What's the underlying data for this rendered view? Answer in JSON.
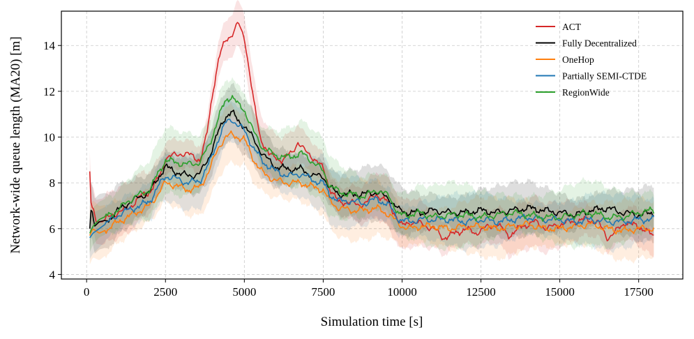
{
  "chart_data": {
    "type": "line",
    "xlabel": "Simulation time [s]",
    "ylabel": "Network-wide queue length (MA20) [m]",
    "xlim": [
      -800,
      18900
    ],
    "ylim": [
      3.8,
      15.5
    ],
    "xticks": [
      0,
      2500,
      5000,
      7500,
      10000,
      12500,
      15000,
      17500
    ],
    "yticks": [
      4,
      6,
      8,
      10,
      12,
      14
    ],
    "grid": true,
    "legend_position": "top-right",
    "series": [
      {
        "name": "ACT",
        "color": "#d62728",
        "points": [
          [
            100,
            8.5
          ],
          [
            150,
            6.8
          ],
          [
            200,
            7.0
          ],
          [
            300,
            6.3
          ],
          [
            500,
            6.3
          ],
          [
            800,
            6.6
          ],
          [
            1200,
            6.8
          ],
          [
            1500,
            7.1
          ],
          [
            1800,
            7.5
          ],
          [
            2000,
            7.6
          ],
          [
            2200,
            8.0
          ],
          [
            2400,
            8.6
          ],
          [
            2500,
            9.1
          ],
          [
            2800,
            9.2
          ],
          [
            3000,
            9.3
          ],
          [
            3300,
            9.2
          ],
          [
            3600,
            9.0
          ],
          [
            3800,
            10.0
          ],
          [
            4000,
            12.0
          ],
          [
            4200,
            13.5
          ],
          [
            4400,
            14.2
          ],
          [
            4600,
            14.5
          ],
          [
            4700,
            14.7
          ],
          [
            4800,
            15.0
          ],
          [
            4900,
            14.6
          ],
          [
            5000,
            14.4
          ],
          [
            5150,
            13.0
          ],
          [
            5300,
            11.5
          ],
          [
            5500,
            10.0
          ],
          [
            5800,
            9.2
          ],
          [
            6200,
            9.0
          ],
          [
            6500,
            9.3
          ],
          [
            6700,
            9.8
          ],
          [
            6900,
            9.4
          ],
          [
            7200,
            9.1
          ],
          [
            7500,
            8.6
          ],
          [
            7700,
            7.8
          ],
          [
            8000,
            7.1
          ],
          [
            8300,
            7.2
          ],
          [
            8600,
            7.0
          ],
          [
            8900,
            7.2
          ],
          [
            9200,
            7.5
          ],
          [
            9500,
            7.2
          ],
          [
            9800,
            6.6
          ],
          [
            10000,
            6.1
          ],
          [
            10300,
            6.3
          ],
          [
            10600,
            6.2
          ],
          [
            11000,
            6.0
          ],
          [
            11300,
            5.6
          ],
          [
            11700,
            5.8
          ],
          [
            12000,
            6.0
          ],
          [
            12300,
            5.8
          ],
          [
            12600,
            6.0
          ],
          [
            13000,
            6.2
          ],
          [
            13400,
            5.7
          ],
          [
            13800,
            6.1
          ],
          [
            14200,
            6.3
          ],
          [
            14600,
            6.0
          ],
          [
            15000,
            6.2
          ],
          [
            15400,
            6.3
          ],
          [
            15800,
            6.4
          ],
          [
            16200,
            6.3
          ],
          [
            16500,
            5.6
          ],
          [
            16800,
            5.9
          ],
          [
            17100,
            6.3
          ],
          [
            17400,
            6.1
          ],
          [
            17700,
            6.0
          ],
          [
            17900,
            5.7
          ],
          [
            18000,
            5.6
          ]
        ],
        "band": 1.0
      },
      {
        "name": "Fully Decentralized",
        "color": "#000000",
        "points": [
          [
            100,
            6.0
          ],
          [
            150,
            7.0
          ],
          [
            250,
            6.1
          ],
          [
            400,
            6.3
          ],
          [
            700,
            6.4
          ],
          [
            1000,
            6.8
          ],
          [
            1300,
            7.1
          ],
          [
            1700,
            7.4
          ],
          [
            2000,
            7.6
          ],
          [
            2300,
            8.3
          ],
          [
            2500,
            8.7
          ],
          [
            2800,
            8.5
          ],
          [
            3200,
            8.3
          ],
          [
            3600,
            8.4
          ],
          [
            3900,
            9.2
          ],
          [
            4200,
            10.3
          ],
          [
            4400,
            10.9
          ],
          [
            4600,
            11.1
          ],
          [
            4800,
            10.7
          ],
          [
            5000,
            10.5
          ],
          [
            5300,
            9.9
          ],
          [
            5600,
            9.2
          ],
          [
            6000,
            8.7
          ],
          [
            6400,
            8.6
          ],
          [
            6800,
            8.6
          ],
          [
            7200,
            8.3
          ],
          [
            7500,
            8.3
          ],
          [
            7700,
            7.8
          ],
          [
            8000,
            7.5
          ],
          [
            8400,
            7.5
          ],
          [
            8800,
            7.5
          ],
          [
            9200,
            7.6
          ],
          [
            9600,
            7.3
          ],
          [
            9900,
            6.8
          ],
          [
            10200,
            6.7
          ],
          [
            10600,
            6.7
          ],
          [
            11000,
            6.8
          ],
          [
            11500,
            6.7
          ],
          [
            12000,
            6.7
          ],
          [
            12500,
            6.8
          ],
          [
            13000,
            6.7
          ],
          [
            13500,
            6.8
          ],
          [
            14000,
            6.9
          ],
          [
            14500,
            6.8
          ],
          [
            15000,
            6.7
          ],
          [
            15500,
            6.6
          ],
          [
            16000,
            6.8
          ],
          [
            16500,
            6.9
          ],
          [
            17000,
            6.7
          ],
          [
            17500,
            6.6
          ],
          [
            18000,
            6.7
          ]
        ],
        "band": 1.1
      },
      {
        "name": "OneHop",
        "color": "#ff7f0e",
        "points": [
          [
            100,
            5.7
          ],
          [
            200,
            6.0
          ],
          [
            400,
            5.8
          ],
          [
            700,
            6.0
          ],
          [
            1000,
            6.3
          ],
          [
            1300,
            6.5
          ],
          [
            1700,
            6.8
          ],
          [
            2000,
            7.0
          ],
          [
            2300,
            7.6
          ],
          [
            2500,
            8.0
          ],
          [
            2800,
            7.9
          ],
          [
            3200,
            7.7
          ],
          [
            3600,
            7.8
          ],
          [
            3900,
            8.6
          ],
          [
            4200,
            9.6
          ],
          [
            4400,
            10.0
          ],
          [
            4600,
            10.1
          ],
          [
            4800,
            10.0
          ],
          [
            5000,
            9.9
          ],
          [
            5300,
            9.0
          ],
          [
            5600,
            8.4
          ],
          [
            6000,
            8.1
          ],
          [
            6400,
            8.0
          ],
          [
            6800,
            8.0
          ],
          [
            7200,
            7.8
          ],
          [
            7500,
            7.7
          ],
          [
            7700,
            7.2
          ],
          [
            8000,
            6.9
          ],
          [
            8400,
            6.8
          ],
          [
            8800,
            6.8
          ],
          [
            9200,
            6.9
          ],
          [
            9600,
            6.6
          ],
          [
            9900,
            6.2
          ],
          [
            10200,
            6.0
          ],
          [
            10600,
            6.1
          ],
          [
            11000,
            6.1
          ],
          [
            11500,
            6.0
          ],
          [
            12000,
            6.1
          ],
          [
            12500,
            6.1
          ],
          [
            13000,
            6.0
          ],
          [
            13500,
            6.1
          ],
          [
            14000,
            6.2
          ],
          [
            14500,
            6.0
          ],
          [
            15000,
            6.0
          ],
          [
            15500,
            6.1
          ],
          [
            16000,
            6.2
          ],
          [
            16500,
            6.0
          ],
          [
            17000,
            5.9
          ],
          [
            17500,
            6.0
          ],
          [
            18000,
            6.0
          ]
        ],
        "band": 1.2
      },
      {
        "name": "Partially SEMI-CTDE",
        "color": "#1f77b4",
        "points": [
          [
            100,
            5.6
          ],
          [
            200,
            5.8
          ],
          [
            400,
            6.0
          ],
          [
            700,
            6.3
          ],
          [
            1000,
            6.6
          ],
          [
            1300,
            6.8
          ],
          [
            1700,
            7.0
          ],
          [
            2000,
            7.2
          ],
          [
            2300,
            7.9
          ],
          [
            2500,
            8.3
          ],
          [
            2800,
            8.2
          ],
          [
            3200,
            8.0
          ],
          [
            3600,
            8.1
          ],
          [
            3900,
            8.9
          ],
          [
            4200,
            10.0
          ],
          [
            4400,
            10.6
          ],
          [
            4600,
            10.8
          ],
          [
            4800,
            10.5
          ],
          [
            5000,
            10.3
          ],
          [
            5300,
            9.5
          ],
          [
            5600,
            8.9
          ],
          [
            6000,
            8.5
          ],
          [
            6400,
            8.3
          ],
          [
            6800,
            8.4
          ],
          [
            7200,
            8.1
          ],
          [
            7500,
            8.0
          ],
          [
            7700,
            7.5
          ],
          [
            8000,
            7.2
          ],
          [
            8400,
            7.2
          ],
          [
            8800,
            7.1
          ],
          [
            9200,
            7.3
          ],
          [
            9600,
            7.0
          ],
          [
            9900,
            6.4
          ],
          [
            10200,
            6.3
          ],
          [
            10600,
            6.4
          ],
          [
            11000,
            6.4
          ],
          [
            11500,
            6.4
          ],
          [
            12000,
            6.3
          ],
          [
            12500,
            6.4
          ],
          [
            13000,
            6.3
          ],
          [
            13500,
            6.4
          ],
          [
            14000,
            6.5
          ],
          [
            14500,
            6.4
          ],
          [
            15000,
            6.4
          ],
          [
            15500,
            6.3
          ],
          [
            16000,
            6.4
          ],
          [
            16500,
            6.3
          ],
          [
            17000,
            6.3
          ],
          [
            17500,
            6.4
          ],
          [
            18000,
            6.4
          ]
        ],
        "band": 1.1
      },
      {
        "name": "RegionWide",
        "color": "#2ca02c",
        "points": [
          [
            100,
            5.8
          ],
          [
            200,
            6.1
          ],
          [
            400,
            6.4
          ],
          [
            700,
            6.6
          ],
          [
            1000,
            6.8
          ],
          [
            1300,
            7.2
          ],
          [
            1700,
            7.5
          ],
          [
            2000,
            7.7
          ],
          [
            2300,
            8.5
          ],
          [
            2500,
            9.0
          ],
          [
            2800,
            8.9
          ],
          [
            3200,
            8.8
          ],
          [
            3600,
            8.9
          ],
          [
            3900,
            9.7
          ],
          [
            4200,
            10.9
          ],
          [
            4400,
            11.6
          ],
          [
            4600,
            11.8
          ],
          [
            4800,
            11.4
          ],
          [
            5000,
            11.2
          ],
          [
            5300,
            10.2
          ],
          [
            5600,
            9.5
          ],
          [
            6000,
            9.2
          ],
          [
            6400,
            9.1
          ],
          [
            6800,
            9.3
          ],
          [
            7200,
            8.9
          ],
          [
            7500,
            8.5
          ],
          [
            7700,
            7.9
          ],
          [
            8000,
            7.6
          ],
          [
            8400,
            7.5
          ],
          [
            8800,
            7.4
          ],
          [
            9200,
            7.7
          ],
          [
            9600,
            7.4
          ],
          [
            9900,
            6.6
          ],
          [
            10200,
            6.6
          ],
          [
            10600,
            6.7
          ],
          [
            11000,
            6.5
          ],
          [
            11500,
            6.6
          ],
          [
            12000,
            6.6
          ],
          [
            12500,
            6.5
          ],
          [
            13000,
            6.6
          ],
          [
            13500,
            6.7
          ],
          [
            14000,
            6.6
          ],
          [
            14500,
            6.5
          ],
          [
            15000,
            6.5
          ],
          [
            15500,
            6.6
          ],
          [
            16000,
            6.7
          ],
          [
            16500,
            6.5
          ],
          [
            17000,
            6.5
          ],
          [
            17500,
            6.7
          ],
          [
            18000,
            6.8
          ]
        ],
        "band": 1.3
      }
    ]
  }
}
